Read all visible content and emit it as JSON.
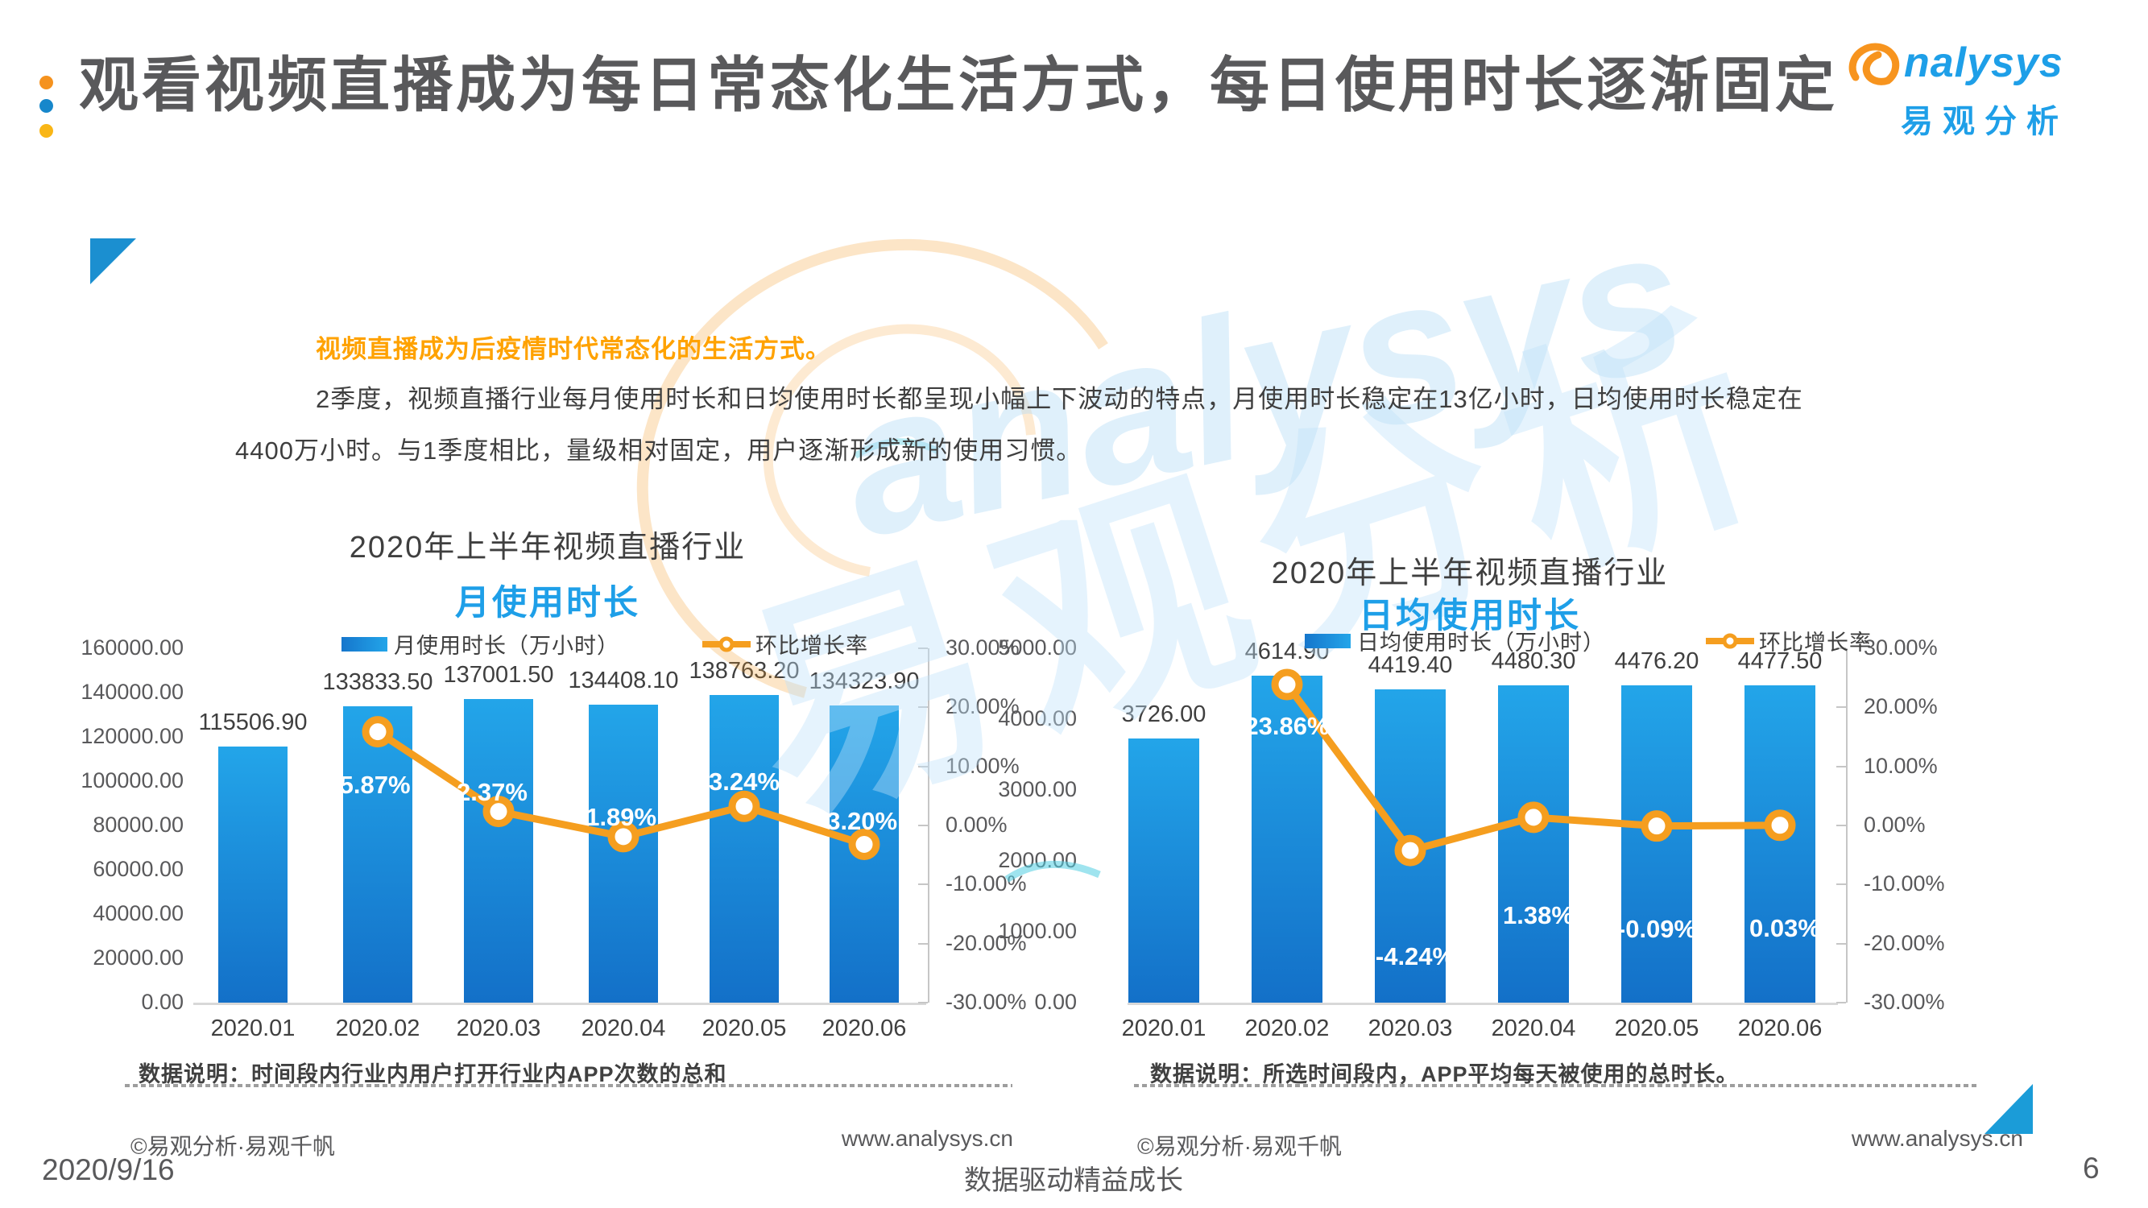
{
  "header": {
    "title": "观看视频直播成为每日常态化生活方式，每日使用时长逐渐固定",
    "logo": {
      "brand": "nalysys",
      "brand_full": "analysys",
      "cn": "易观分析"
    }
  },
  "intro": {
    "highlight": "视频直播成为后疫情时代常态化的生活方式。",
    "line1": "2季度，视频直播行业每月使用时长和日均使用时长都呈现小幅上下波动的特点，月使用时长稳定在13亿小时，日均使用时长稳定在",
    "line2": "4400万小时。与1季度相比，量级相对固定，用户逐渐形成新的使用习惯。"
  },
  "chart_data": [
    {
      "type": "bar+line",
      "title": "2020年上半年视频直播行业",
      "subtitle": "月使用时长",
      "legend_bar": "月使用时长（万小时）",
      "legend_line": "环比增长率",
      "legend_position": "top",
      "grid": false,
      "categories": [
        "2020.01",
        "2020.02",
        "2020.03",
        "2020.04",
        "2020.05",
        "2020.06"
      ],
      "bar_values": [
        115506.9,
        133833.5,
        137001.5,
        134408.1,
        138763.2,
        134323.9
      ],
      "bar_labels": [
        "115506.90",
        "133833.50",
        "137001.50",
        "134408.10",
        "138763.20",
        "134323.90"
      ],
      "growth_values": [
        null,
        15.87,
        2.37,
        -1.89,
        3.24,
        -3.2
      ],
      "growth_labels": [
        null,
        "15.87%",
        "2.37%",
        "-1.89%",
        "3.24%",
        "-3.20%"
      ],
      "y_axis": {
        "min": 0,
        "max": 160000,
        "tick_labels": [
          "160000.00",
          "140000.00",
          "120000.00",
          "100000.00",
          "80000.00",
          "60000.00",
          "40000.00",
          "20000.00",
          "0.00"
        ]
      },
      "pct_axis": {
        "min": -30,
        "max": 30,
        "tick_labels": [
          "30.00%",
          "20.00%",
          "10.00%",
          "0.00%",
          "-10.00%",
          "-20.00%",
          "-30.00%"
        ]
      },
      "note": "数据说明：时间段内行业内用户打开行业内APP次数的总和",
      "copyright": "©易观分析·易观千帆",
      "url": "www.analysys.cn",
      "bar_color": "#1E9DE5",
      "line_color": "#F59E1F"
    },
    {
      "type": "bar+line",
      "title": "2020年上半年视频直播行业",
      "subtitle": "日均使用时长",
      "legend_bar": "日均使用时长（万小时）",
      "legend_line": "环比增长率",
      "legend_position": "top",
      "grid": false,
      "categories": [
        "2020.01",
        "2020.02",
        "2020.03",
        "2020.04",
        "2020.05",
        "2020.06"
      ],
      "bar_values": [
        3726.0,
        4614.9,
        4419.4,
        4480.3,
        4476.2,
        4477.5
      ],
      "bar_labels": [
        "3726.00",
        "4614.90",
        "4419.40",
        "4480.30",
        "4476.20",
        "4477.50"
      ],
      "growth_values": [
        null,
        23.86,
        -4.24,
        1.38,
        -0.09,
        0.03
      ],
      "growth_labels": [
        null,
        "23.86%",
        "-4.24%",
        "1.38%",
        "-0.09%",
        "0.03%"
      ],
      "y_axis": {
        "min": 0,
        "max": 5000,
        "tick_labels": [
          "5000.00",
          "4000.00",
          "3000.00",
          "2000.00",
          "1000.00",
          "0.00"
        ]
      },
      "pct_axis": {
        "min": -30,
        "max": 30,
        "tick_labels": [
          "30.00%",
          "20.00%",
          "10.00%",
          "0.00%",
          "-10.00%",
          "-20.00%",
          "-30.00%"
        ]
      },
      "note": "数据说明：所选时间段内，APP平均每天被使用的总时长。",
      "copyright": "©易观分析·易观千帆",
      "url": "www.analysys.cn",
      "bar_color": "#1E9DE5",
      "line_color": "#F59E1F"
    }
  ],
  "footer": {
    "date": "2020/9/16",
    "slogan": "数据驱动精益成长",
    "page": "6"
  },
  "colors": {
    "accent_blue": "#1E9FE8",
    "accent_orange": "#F59E1F",
    "title_gray": "#59595B",
    "dot1": "#F5921E",
    "dot2": "#1787CB",
    "dot3": "#F9B616",
    "triangle": "#1B8FD0"
  }
}
